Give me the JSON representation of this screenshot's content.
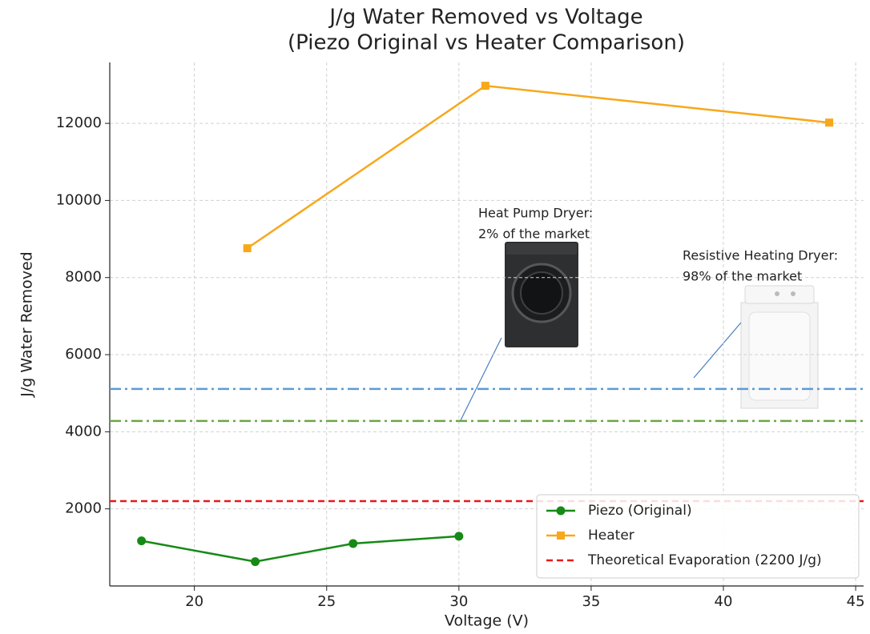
{
  "chart_data": {
    "type": "line",
    "title": [
      "J/g Water Removed vs Voltage",
      "(Piezo Original vs Heater Comparison)"
    ],
    "xlabel": "Voltage (V)",
    "ylabel": "J/g Water Removed",
    "xlim": [
      16.8,
      45.3
    ],
    "ylim": [
      0,
      13580
    ],
    "xticks": [
      20,
      25,
      30,
      35,
      40,
      45
    ],
    "yticks": [
      2000,
      4000,
      6000,
      8000,
      10000,
      12000
    ],
    "grid": true,
    "legend": "lower right",
    "series": [
      {
        "name": "Piezo (Original)",
        "color": "#168a16",
        "marker": "circle",
        "x": [
          18,
          22.3,
          26,
          30
        ],
        "values": [
          1170,
          630,
          1100,
          1290
        ]
      },
      {
        "name": "Heater",
        "color": "#f7a81b",
        "marker": "square",
        "x": [
          22,
          31,
          44
        ],
        "values": [
          8760,
          12975,
          12020
        ]
      }
    ],
    "hlines": [
      {
        "name": "Theoretical Evaporation (2200 J/g)",
        "value": 2200,
        "color": "#e8191a",
        "style": "dashed"
      },
      {
        "value": 5110,
        "color": "#5b9bd5",
        "style": "dashdot"
      },
      {
        "value": 4280,
        "color": "#6aa843",
        "style": "dashdot"
      }
    ],
    "annotations": [
      {
        "text": [
          "Heat Pump Dryer:",
          "2% of the market"
        ]
      },
      {
        "text": [
          "Resistive Heating Dryer:",
          "98% of the market"
        ]
      }
    ]
  }
}
